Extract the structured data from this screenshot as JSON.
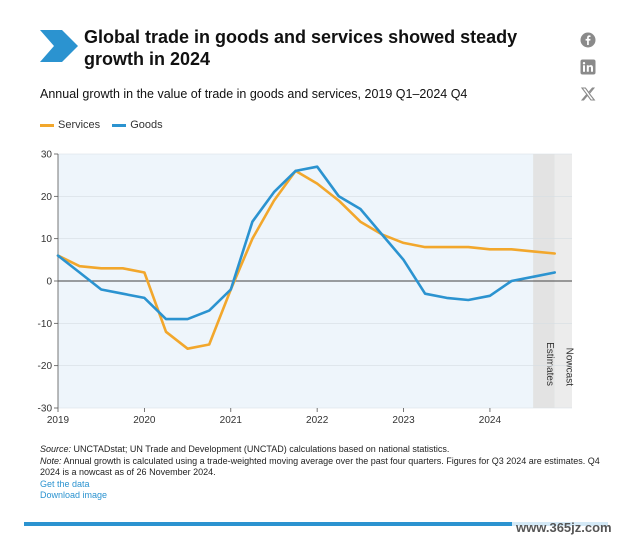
{
  "header": {
    "title": "Global trade in goods and services showed steady growth in 2024",
    "subtitle": "Annual growth in the value of trade in goods and services, 2019 Q1–2024 Q4"
  },
  "legend": {
    "services_label": "Services",
    "goods_label": "Goods"
  },
  "colors": {
    "services": "#f2a72c",
    "goods": "#2b93d0",
    "accent": "#2b93d0",
    "shade": "#e6e6e6"
  },
  "social": [
    "facebook-icon",
    "linkedin-icon",
    "x-icon"
  ],
  "chart_data": {
    "type": "line",
    "title": "Annual growth in the value of trade in goods and services, 2019 Q1–2024 Q4",
    "xlabel": "",
    "ylabel": "",
    "ylim": [
      -30,
      30
    ],
    "yticks": [
      30,
      20,
      10,
      0,
      -10,
      -20,
      -30
    ],
    "xtick_labels": [
      "2019",
      "2020",
      "2021",
      "2022",
      "2023",
      "2024"
    ],
    "xlim": [
      2019.0,
      2024.75
    ],
    "x": [
      2019.0,
      2019.25,
      2019.5,
      2019.75,
      2020.0,
      2020.25,
      2020.5,
      2020.75,
      2021.0,
      2021.25,
      2021.5,
      2021.75,
      2022.0,
      2022.25,
      2022.5,
      2022.75,
      2023.0,
      2023.25,
      2023.5,
      2023.75,
      2024.0,
      2024.25,
      2024.5,
      2024.75
    ],
    "series": [
      {
        "name": "Services",
        "values": [
          6,
          3.5,
          3,
          3,
          2,
          -12,
          -16,
          -15,
          -2,
          10,
          19,
          26,
          23,
          19,
          14,
          11,
          9,
          8,
          8,
          8,
          7.5,
          7.5,
          7,
          6.5
        ]
      },
      {
        "name": "Goods",
        "values": [
          6,
          2,
          -2,
          -3,
          -4,
          -9,
          -9,
          -7,
          -2,
          14,
          21,
          26,
          27,
          20,
          17,
          11,
          5,
          -3,
          -4,
          -4.5,
          -3.5,
          0,
          1,
          2
        ]
      }
    ],
    "shaded_regions": [
      {
        "from": 2024.5,
        "to": 2024.75,
        "label": "Estimates"
      },
      {
        "from": 2024.75,
        "to": 2024.95,
        "label": "Nowcast"
      }
    ]
  },
  "notes": {
    "source_label": "Source:",
    "source_text": " UNCTADstat; UN Trade and Development (UNCTAD) calculations based on national statistics.",
    "note_label": "Note:",
    "note_text": " Annual growth is calculated using a trade-weighted moving average over the past four quarters. Figures for Q3 2024 are estimates. Q4 2024 is a nowcast as of 26 November 2024.",
    "get_data": "Get the data",
    "download_image": "Download image"
  },
  "watermark": "www.365jz.com"
}
